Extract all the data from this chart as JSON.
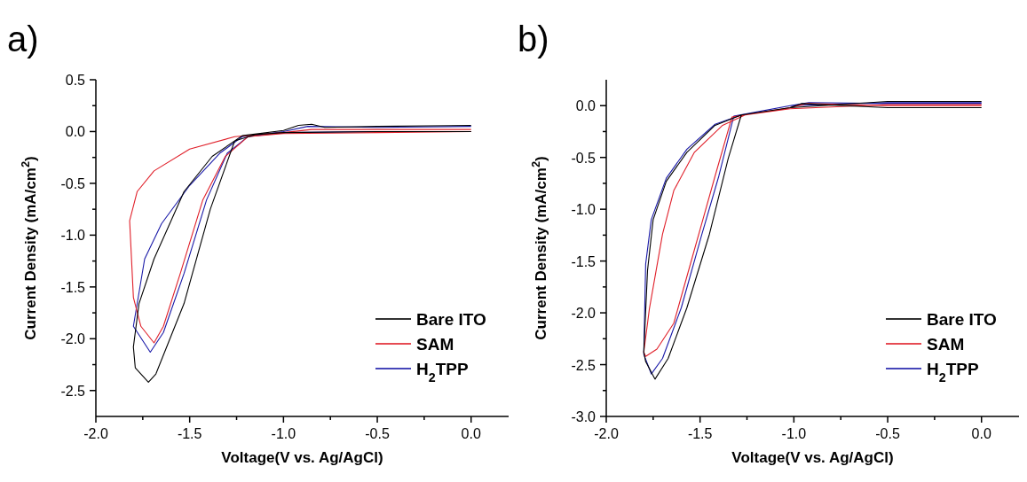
{
  "chart_data": [
    {
      "type": "line",
      "title": "a)",
      "xlabel": "Voltage(V vs. Ag/AgCl)",
      "ylabel": "Current Density (mA/cm$^{2}$)",
      "xlim": [
        -2.0,
        0.2
      ],
      "ylim": [
        -2.75,
        0.5
      ],
      "xticks": [
        {
          "value": -2.0,
          "label": "-2.0"
        },
        {
          "value": -1.75,
          "label": null
        },
        {
          "value": -1.5,
          "label": "-1.5"
        },
        {
          "value": -1.25,
          "label": null
        },
        {
          "value": -1.0,
          "label": "-1.0"
        },
        {
          "value": -0.75,
          "label": null
        },
        {
          "value": -0.5,
          "label": "-0.5"
        },
        {
          "value": -0.25,
          "label": null
        },
        {
          "value": 0,
          "label": "0.0"
        }
      ],
      "yticks": [
        {
          "value": -2.5,
          "label": "-2.5"
        },
        {
          "value": -2.25,
          "label": null
        },
        {
          "value": -2.0,
          "label": "-2.0"
        },
        {
          "value": -1.75,
          "label": null
        },
        {
          "value": -1.5,
          "label": "-1.5"
        },
        {
          "value": -1.25,
          "label": null
        },
        {
          "value": -1.0,
          "label": "-1.0"
        },
        {
          "value": -0.75,
          "label": null
        },
        {
          "value": -0.5,
          "label": "-0.5"
        },
        {
          "value": -0.25,
          "label": null
        },
        {
          "value": 0,
          "label": "0.0"
        },
        {
          "value": 0.25,
          "label": null
        },
        {
          "value": 0.5,
          "label": "0.5"
        }
      ],
      "legend": "bottom right",
      "grid": false,
      "line_style": "solid",
      "series": [
        {
          "name": "Bare ITO",
          "color": "#000000",
          "x": [
            0,
            -0.5,
            -1.0,
            -1.15,
            -1.26,
            -1.39,
            -1.53,
            -1.68,
            -1.72,
            -1.79,
            -1.8,
            -1.77,
            -1.69,
            -1.53,
            -1.38,
            -1.22,
            -1.0,
            -0.92,
            -0.85,
            -0.78,
            -0.5,
            0
          ],
          "values": [
            0.0,
            0.0,
            -0.01,
            -0.03,
            -0.09,
            -0.75,
            -1.66,
            -2.34,
            -2.42,
            -2.28,
            -2.08,
            -1.66,
            -1.23,
            -0.58,
            -0.24,
            -0.04,
            0.01,
            0.06,
            0.07,
            0.04,
            0.05,
            0.06
          ]
        },
        {
          "name": "SAM",
          "color": "#e0202a",
          "x": [
            0,
            -0.5,
            -1.0,
            -1.19,
            -1.31,
            -1.43,
            -1.55,
            -1.64,
            -1.69,
            -1.76,
            -1.8,
            -1.82,
            -1.78,
            -1.69,
            -1.5,
            -1.26,
            -1.0,
            -0.85,
            -0.5,
            0
          ],
          "values": [
            0.0,
            -0.01,
            -0.02,
            -0.05,
            -0.24,
            -0.66,
            -1.37,
            -1.88,
            -2.04,
            -1.88,
            -1.6,
            -0.86,
            -0.58,
            -0.38,
            -0.17,
            -0.05,
            -0.01,
            0.02,
            0.02,
            0.02
          ]
        },
        {
          "name": "H$_{2}$TPP",
          "color": "#1a1aa8",
          "x": [
            0,
            -0.5,
            -1.0,
            -1.19,
            -1.3,
            -1.41,
            -1.53,
            -1.64,
            -1.71,
            -1.8,
            -1.74,
            -1.65,
            -1.5,
            -1.34,
            -1.22,
            -1.0,
            -0.87,
            -0.5,
            0
          ],
          "values": [
            0.0,
            0.0,
            -0.01,
            -0.05,
            -0.21,
            -0.66,
            -1.37,
            -1.94,
            -2.13,
            -1.88,
            -1.23,
            -0.89,
            -0.52,
            -0.21,
            -0.05,
            0.0,
            0.05,
            0.04,
            0.05
          ]
        }
      ]
    },
    {
      "type": "line",
      "title": "b)",
      "xlabel": "Voltage(V vs. Ag/AgCl)",
      "ylabel": "Current Density (mA/cm$^{2}$)",
      "xlim": [
        -2.0,
        0.2
      ],
      "ylim": [
        -3.0,
        0.25
      ],
      "xticks": [
        {
          "value": -2.0,
          "label": "-2.0"
        },
        {
          "value": -1.75,
          "label": null
        },
        {
          "value": -1.5,
          "label": "-1.5"
        },
        {
          "value": -1.25,
          "label": null
        },
        {
          "value": -1.0,
          "label": "-1.0"
        },
        {
          "value": -0.75,
          "label": null
        },
        {
          "value": -0.5,
          "label": "-0.5"
        },
        {
          "value": -0.25,
          "label": null
        },
        {
          "value": 0,
          "label": "0.0"
        }
      ],
      "yticks": [
        {
          "value": -3.0,
          "label": "-3.0"
        },
        {
          "value": -2.75,
          "label": null
        },
        {
          "value": -2.5,
          "label": "-2.5"
        },
        {
          "value": -2.25,
          "label": null
        },
        {
          "value": -2.0,
          "label": "-2.0"
        },
        {
          "value": -1.75,
          "label": null
        },
        {
          "value": -1.5,
          "label": "-1.5"
        },
        {
          "value": -1.25,
          "label": null
        },
        {
          "value": -1.0,
          "label": "-1.0"
        },
        {
          "value": -0.75,
          "label": null
        },
        {
          "value": -0.5,
          "label": "-0.5"
        },
        {
          "value": -0.25,
          "label": null
        },
        {
          "value": 0,
          "label": "0.0"
        }
      ],
      "legend": "bottom right",
      "grid": false,
      "line_style": "solid",
      "series": [
        {
          "name": "Bare ITO",
          "color": "#000000",
          "x": [
            0,
            -0.5,
            -0.96,
            -1.02,
            -1.28,
            -1.35,
            -1.45,
            -1.57,
            -1.67,
            -1.74,
            -1.79,
            -1.8,
            -1.78,
            -1.75,
            -1.68,
            -1.57,
            -1.42,
            -1.28,
            -1.02,
            -0.5,
            0
          ],
          "values": [
            -0.02,
            -0.02,
            0.02,
            -0.02,
            -0.09,
            -0.51,
            -1.24,
            -1.95,
            -2.44,
            -2.64,
            -2.47,
            -2.38,
            -1.59,
            -1.1,
            -0.73,
            -0.45,
            -0.19,
            -0.09,
            -0.02,
            0.04,
            0.04
          ]
        },
        {
          "name": "SAM",
          "color": "#e0202a",
          "x": [
            0,
            -0.5,
            -0.93,
            -1.02,
            -1.33,
            -1.42,
            -1.53,
            -1.64,
            -1.73,
            -1.79,
            -1.8,
            -1.77,
            -1.7,
            -1.64,
            -1.53,
            -1.38,
            -1.26,
            -1.02,
            -0.5,
            0
          ],
          "values": [
            0.0,
            0.0,
            0.02,
            -0.02,
            -0.11,
            -0.68,
            -1.39,
            -2.1,
            -2.35,
            -2.42,
            -2.38,
            -1.96,
            -1.24,
            -0.82,
            -0.45,
            -0.19,
            -0.09,
            -0.03,
            0.01,
            0.01
          ]
        },
        {
          "name": "H$_{2}$TPP",
          "color": "#1a1aa8",
          "x": [
            0,
            -0.5,
            -0.92,
            -1.02,
            -1.32,
            -1.4,
            -1.49,
            -1.6,
            -1.7,
            -1.76,
            -1.8,
            -1.79,
            -1.76,
            -1.68,
            -1.57,
            -1.42,
            -1.28,
            -1.02,
            -0.5,
            0
          ],
          "values": [
            0.02,
            0.02,
            0.03,
            0.0,
            -0.1,
            -0.68,
            -1.24,
            -1.95,
            -2.44,
            -2.59,
            -2.4,
            -1.53,
            -1.1,
            -0.7,
            -0.42,
            -0.18,
            -0.09,
            0.0,
            0.03,
            0.03
          ]
        }
      ]
    }
  ]
}
